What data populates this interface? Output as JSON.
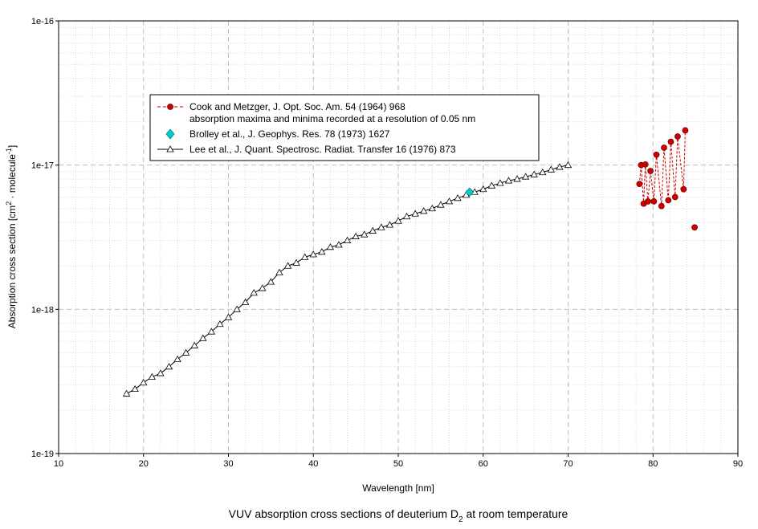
{
  "chart_data": {
    "type": "scatter",
    "caption": "VUV absorption cross sections of deuterium D",
    "caption_subscript": "2",
    "caption_suffix": " at room temperature",
    "xlabel": "Wavelength [nm]",
    "ylabel_main": "Absorption cross section [cm",
    "ylabel_sup1": "2",
    "ylabel_mid": " molecule",
    "ylabel_sup2": "-1",
    "ylabel_end": "]",
    "xlim": [
      10,
      90
    ],
    "ylim": [
      1e-19,
      1e-16
    ],
    "yscale": "log",
    "x_ticks": [
      "10",
      "20",
      "30",
      "40",
      "50",
      "60",
      "70",
      "80",
      "90"
    ],
    "y_ticks": [
      "1e-19",
      "1e-18",
      "1e-17",
      "1e-16"
    ],
    "grid": true,
    "legend_position": "upper-left",
    "series": [
      {
        "name": "Cook and Metzger, J. Opt. Soc. Am. 54 (1964) 968",
        "name_line2": "absorption maxima and minima recorded at a resolution of 0.05 nm",
        "marker": "circle",
        "color": "#cc0000",
        "line": "dashed",
        "points": [
          [
            78.4,
            7.4e-18
          ],
          [
            78.6,
            1e-17
          ],
          [
            78.9,
            5.4e-18
          ],
          [
            79.1,
            1.01e-17
          ],
          [
            79.4,
            5.6e-18
          ],
          [
            79.7,
            9.1e-18
          ],
          [
            80.1,
            5.6e-18
          ],
          [
            80.4,
            1.18e-17
          ],
          [
            81.0,
            5.2e-18
          ],
          [
            81.3,
            1.32e-17
          ],
          [
            81.8,
            5.7e-18
          ],
          [
            82.1,
            1.45e-17
          ],
          [
            82.6,
            6e-18
          ],
          [
            82.9,
            1.58e-17
          ],
          [
            83.6,
            6.8e-18
          ],
          [
            83.8,
            1.74e-17
          ]
        ],
        "isolated_points": [
          [
            84.9,
            3.7e-18
          ]
        ]
      },
      {
        "name": "Brolley et al., J. Geophys. Res. 78 (1973) 1627",
        "marker": "diamond",
        "color": "#00cccc",
        "line": "none",
        "points": [
          [
            58.4,
            6.5e-18
          ]
        ]
      },
      {
        "name": "Lee et al., J. Quant. Spectrosc. Radiat. Transfer 16 (1976) 873",
        "marker": "triangle",
        "color": "#000000",
        "line": "solid",
        "points": [
          [
            18,
            2.6e-19
          ],
          [
            19,
            2.8e-19
          ],
          [
            20,
            3.1e-19
          ],
          [
            21,
            3.4e-19
          ],
          [
            22,
            3.6e-19
          ],
          [
            23,
            4e-19
          ],
          [
            24,
            4.5e-19
          ],
          [
            25,
            5e-19
          ],
          [
            26,
            5.6e-19
          ],
          [
            27,
            6.3e-19
          ],
          [
            28,
            7e-19
          ],
          [
            29,
            7.9e-19
          ],
          [
            30,
            8.8e-19
          ],
          [
            31,
            1e-18
          ],
          [
            32,
            1.12e-18
          ],
          [
            33,
            1.3e-18
          ],
          [
            34,
            1.4e-18
          ],
          [
            35,
            1.55e-18
          ],
          [
            36,
            1.8e-18
          ],
          [
            37,
            2e-18
          ],
          [
            38,
            2.1e-18
          ],
          [
            39,
            2.3e-18
          ],
          [
            40,
            2.4e-18
          ],
          [
            41,
            2.5e-18
          ],
          [
            42,
            2.7e-18
          ],
          [
            43,
            2.8e-18
          ],
          [
            44,
            3e-18
          ],
          [
            45,
            3.2e-18
          ],
          [
            46,
            3.3e-18
          ],
          [
            47,
            3.5e-18
          ],
          [
            48,
            3.7e-18
          ],
          [
            49,
            3.85e-18
          ],
          [
            50,
            4.1e-18
          ],
          [
            51,
            4.4e-18
          ],
          [
            52,
            4.6e-18
          ],
          [
            53,
            4.8e-18
          ],
          [
            54,
            5e-18
          ],
          [
            55,
            5.3e-18
          ],
          [
            56,
            5.6e-18
          ],
          [
            57,
            5.9e-18
          ],
          [
            58,
            6.2e-18
          ],
          [
            59,
            6.5e-18
          ],
          [
            60,
            6.8e-18
          ],
          [
            61,
            7.2e-18
          ],
          [
            62,
            7.5e-18
          ],
          [
            63,
            7.8e-18
          ],
          [
            64,
            8e-18
          ],
          [
            65,
            8.3e-18
          ],
          [
            66,
            8.6e-18
          ],
          [
            67,
            8.9e-18
          ],
          [
            68,
            9.3e-18
          ],
          [
            69,
            9.7e-18
          ],
          [
            70,
            1e-17
          ]
        ]
      }
    ]
  }
}
